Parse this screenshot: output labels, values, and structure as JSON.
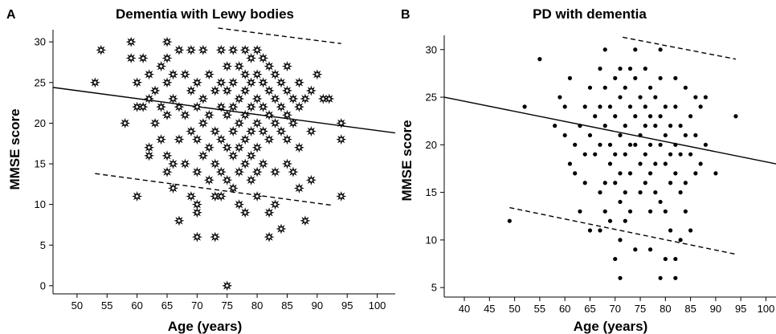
{
  "chart_data": [
    {
      "type": "scatter",
      "panel_letter": "A",
      "title": "Dementia with Lewy bodies",
      "xlabel": "Age (years)",
      "ylabel": "MMSE score",
      "xlim": [
        46,
        103
      ],
      "ylim": [
        -1,
        31.5
      ],
      "xticks": [
        50,
        55,
        60,
        65,
        70,
        75,
        80,
        85,
        90,
        95,
        100
      ],
      "yticks": [
        0,
        5,
        10,
        15,
        20,
        25,
        30
      ],
      "marker": "star",
      "regression_line": [
        [
          46,
          24.4
        ],
        [
          103,
          18.8
        ]
      ],
      "prediction_bands": [
        [
          [
            73.5,
            31.7
          ],
          [
            94,
            29.8
          ]
        ],
        [
          [
            53,
            13.8
          ],
          [
            92.5,
            9.9
          ]
        ]
      ],
      "points": [
        [
          53,
          25
        ],
        [
          54,
          29
        ],
        [
          58,
          20
        ],
        [
          59,
          30
        ],
        [
          59,
          28
        ],
        [
          60,
          25
        ],
        [
          60,
          22
        ],
        [
          60,
          11
        ],
        [
          61,
          28
        ],
        [
          61,
          22
        ],
        [
          62,
          26
        ],
        [
          62,
          23
        ],
        [
          62,
          17
        ],
        [
          62,
          16
        ],
        [
          63,
          24
        ],
        [
          63,
          20
        ],
        [
          64,
          27
        ],
        [
          64,
          22
        ],
        [
          64,
          18
        ],
        [
          65,
          30
        ],
        [
          65,
          28
        ],
        [
          65,
          25
        ],
        [
          65,
          21
        ],
        [
          65,
          16
        ],
        [
          65,
          14
        ],
        [
          66,
          26
        ],
        [
          66,
          23
        ],
        [
          66,
          15
        ],
        [
          66,
          12
        ],
        [
          67,
          29
        ],
        [
          67,
          22
        ],
        [
          67,
          18
        ],
        [
          67,
          8
        ],
        [
          68,
          26
        ],
        [
          68,
          21
        ],
        [
          68,
          15
        ],
        [
          69,
          29
        ],
        [
          69,
          24
        ],
        [
          69,
          19
        ],
        [
          69,
          11
        ],
        [
          70,
          25
        ],
        [
          70,
          22
        ],
        [
          70,
          18
        ],
        [
          70,
          14
        ],
        [
          70,
          10
        ],
        [
          70,
          9
        ],
        [
          70,
          6
        ],
        [
          71,
          29
        ],
        [
          71,
          23
        ],
        [
          71,
          20
        ],
        [
          71,
          16
        ],
        [
          72,
          26
        ],
        [
          72,
          21
        ],
        [
          72,
          17
        ],
        [
          72,
          13
        ],
        [
          73,
          6
        ],
        [
          73,
          11
        ],
        [
          73,
          24
        ],
        [
          73,
          19
        ],
        [
          73,
          15
        ],
        [
          74,
          29
        ],
        [
          74,
          25
        ],
        [
          74,
          22
        ],
        [
          74,
          18
        ],
        [
          74,
          14
        ],
        [
          74,
          11
        ],
        [
          75,
          27
        ],
        [
          75,
          24
        ],
        [
          75,
          21
        ],
        [
          75,
          17
        ],
        [
          75,
          13
        ],
        [
          75,
          0
        ],
        [
          76,
          29
        ],
        [
          76,
          25
        ],
        [
          76,
          22
        ],
        [
          76,
          19
        ],
        [
          76,
          16
        ],
        [
          76,
          12
        ],
        [
          77,
          27
        ],
        [
          77,
          23
        ],
        [
          77,
          20
        ],
        [
          77,
          17
        ],
        [
          77,
          14
        ],
        [
          77,
          10
        ],
        [
          78,
          29
        ],
        [
          78,
          26
        ],
        [
          78,
          24
        ],
        [
          78,
          21
        ],
        [
          78,
          18
        ],
        [
          78,
          15
        ],
        [
          78,
          9
        ],
        [
          79,
          28
        ],
        [
          79,
          25
        ],
        [
          79,
          22
        ],
        [
          79,
          19
        ],
        [
          79,
          16
        ],
        [
          79,
          13
        ],
        [
          80,
          29
        ],
        [
          80,
          26
        ],
        [
          80,
          23
        ],
        [
          80,
          20
        ],
        [
          80,
          17
        ],
        [
          80,
          14
        ],
        [
          80,
          11
        ],
        [
          81,
          28
        ],
        [
          81,
          25
        ],
        [
          81,
          22
        ],
        [
          81,
          19
        ],
        [
          81,
          15
        ],
        [
          82,
          27
        ],
        [
          82,
          24
        ],
        [
          82,
          21
        ],
        [
          82,
          18
        ],
        [
          82,
          9
        ],
        [
          82,
          6
        ],
        [
          83,
          26
        ],
        [
          83,
          23
        ],
        [
          83,
          20
        ],
        [
          83,
          14
        ],
        [
          83,
          10
        ],
        [
          84,
          25
        ],
        [
          84,
          22
        ],
        [
          84,
          19
        ],
        [
          84,
          7
        ],
        [
          85,
          27
        ],
        [
          85,
          24
        ],
        [
          85,
          21
        ],
        [
          85,
          18
        ],
        [
          85,
          15
        ],
        [
          86,
          23
        ],
        [
          86,
          20
        ],
        [
          86,
          14
        ],
        [
          87,
          25
        ],
        [
          87,
          22
        ],
        [
          87,
          17
        ],
        [
          87,
          12
        ],
        [
          88,
          23
        ],
        [
          88,
          8
        ],
        [
          89,
          24
        ],
        [
          89,
          19
        ],
        [
          89,
          13
        ],
        [
          90,
          26
        ],
        [
          91,
          23
        ],
        [
          92,
          23
        ],
        [
          94,
          20
        ],
        [
          94,
          18
        ],
        [
          94,
          11
        ]
      ]
    },
    {
      "type": "scatter",
      "panel_letter": "B",
      "title": "PD with dementia",
      "xlabel": "Age (years)",
      "ylabel": "MMSE score",
      "xlim": [
        36,
        102
      ],
      "ylim": [
        4,
        31.5
      ],
      "xticks": [
        40,
        45,
        50,
        55,
        60,
        65,
        70,
        75,
        80,
        85,
        90,
        95,
        100
      ],
      "yticks": [
        5,
        10,
        15,
        20,
        25,
        30
      ],
      "marker": "dot",
      "regression_line": [
        [
          36,
          25
        ],
        [
          102,
          18
        ]
      ],
      "prediction_bands": [
        [
          [
            71.5,
            31.3
          ],
          [
            94,
            29
          ]
        ],
        [
          [
            49,
            13.4
          ],
          [
            94,
            8.5
          ]
        ]
      ],
      "points": [
        [
          49,
          12
        ],
        [
          52,
          24
        ],
        [
          55,
          29
        ],
        [
          58,
          22
        ],
        [
          59,
          25
        ],
        [
          60,
          24
        ],
        [
          60,
          21
        ],
        [
          61,
          27
        ],
        [
          61,
          18
        ],
        [
          62,
          20
        ],
        [
          62,
          17
        ],
        [
          63,
          22
        ],
        [
          63,
          13
        ],
        [
          64,
          24
        ],
        [
          64,
          19
        ],
        [
          64,
          16
        ],
        [
          65,
          26
        ],
        [
          65,
          21
        ],
        [
          65,
          11
        ],
        [
          66,
          23
        ],
        [
          66,
          19
        ],
        [
          67,
          28
        ],
        [
          67,
          24
        ],
        [
          67,
          20
        ],
        [
          67,
          15
        ],
        [
          67,
          11
        ],
        [
          68,
          30
        ],
        [
          68,
          26
        ],
        [
          68,
          22
        ],
        [
          68,
          16
        ],
        [
          68,
          13
        ],
        [
          69,
          24
        ],
        [
          69,
          20
        ],
        [
          69,
          18
        ],
        [
          69,
          12
        ],
        [
          70,
          27
        ],
        [
          70,
          23
        ],
        [
          70,
          19
        ],
        [
          70,
          16
        ],
        [
          70,
          8
        ],
        [
          71,
          28
        ],
        [
          71,
          25
        ],
        [
          71,
          21
        ],
        [
          71,
          17
        ],
        [
          71,
          14
        ],
        [
          71,
          10
        ],
        [
          71,
          6
        ],
        [
          72,
          26
        ],
        [
          72,
          22
        ],
        [
          72,
          19
        ],
        [
          72,
          15
        ],
        [
          72,
          12
        ],
        [
          73,
          28
        ],
        [
          73,
          24
        ],
        [
          73,
          20
        ],
        [
          73,
          17
        ],
        [
          73,
          13
        ],
        [
          74,
          30
        ],
        [
          74,
          27
        ],
        [
          74,
          23
        ],
        [
          74,
          20
        ],
        [
          74,
          9
        ],
        [
          75,
          25
        ],
        [
          75,
          21
        ],
        [
          75,
          18
        ],
        [
          75,
          15
        ],
        [
          76,
          28
        ],
        [
          76,
          24
        ],
        [
          76,
          22
        ],
        [
          76,
          19
        ],
        [
          76,
          16
        ],
        [
          77,
          26
        ],
        [
          77,
          23
        ],
        [
          77,
          20
        ],
        [
          77,
          17
        ],
        [
          77,
          13
        ],
        [
          77,
          9
        ],
        [
          78,
          25
        ],
        [
          78,
          22
        ],
        [
          78,
          18
        ],
        [
          78,
          15
        ],
        [
          79,
          30
        ],
        [
          79,
          27
        ],
        [
          79,
          23
        ],
        [
          79,
          20
        ],
        [
          79,
          14
        ],
        [
          79,
          6
        ],
        [
          80,
          24
        ],
        [
          80,
          21
        ],
        [
          80,
          18
        ],
        [
          80,
          13
        ],
        [
          80,
          8
        ],
        [
          81,
          22
        ],
        [
          81,
          19
        ],
        [
          81,
          16
        ],
        [
          81,
          11
        ],
        [
          82,
          27
        ],
        [
          82,
          24
        ],
        [
          82,
          20
        ],
        [
          82,
          17
        ],
        [
          82,
          8
        ],
        [
          82,
          6
        ],
        [
          83,
          22
        ],
        [
          83,
          19
        ],
        [
          83,
          15
        ],
        [
          83,
          10
        ],
        [
          84,
          26
        ],
        [
          84,
          21
        ],
        [
          84,
          16
        ],
        [
          84,
          13
        ],
        [
          85,
          23
        ],
        [
          85,
          19
        ],
        [
          85,
          11
        ],
        [
          86,
          25
        ],
        [
          86,
          21
        ],
        [
          86,
          17
        ],
        [
          87,
          24
        ],
        [
          87,
          18
        ],
        [
          88,
          25
        ],
        [
          88,
          20
        ],
        [
          90,
          17
        ],
        [
          94,
          23
        ]
      ]
    }
  ]
}
